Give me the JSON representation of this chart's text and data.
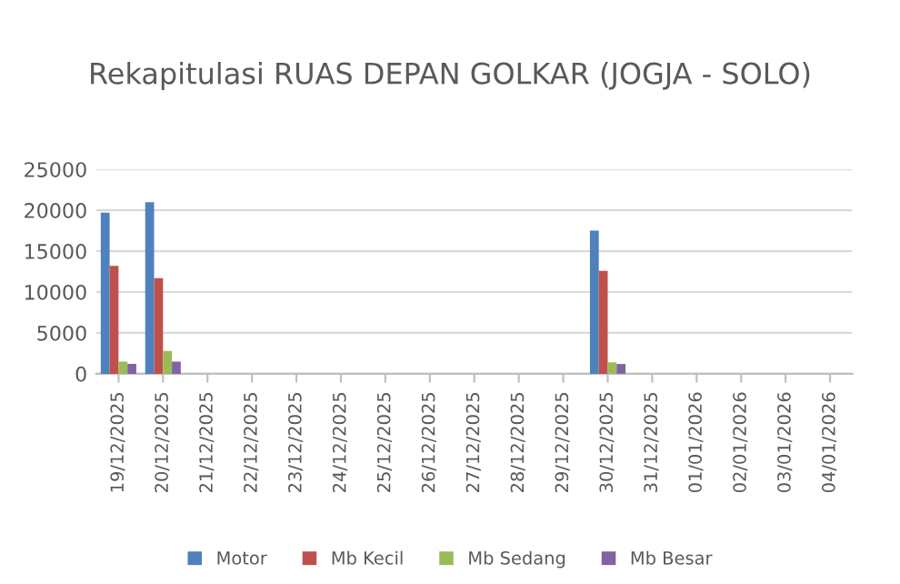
{
  "chart_data": {
    "type": "bar",
    "title": "Rekapitulasi RUAS DEPAN GOLKAR (JOGJA - SOLO)",
    "categories": [
      "19/12/2025",
      "20/12/2025",
      "21/12/2025",
      "22/12/2025",
      "23/12/2025",
      "24/12/2025",
      "25/12/2025",
      "26/12/2025",
      "27/12/2025",
      "28/12/2025",
      "29/12/2025",
      "30/12/2025",
      "31/12/2025",
      "01/01/2026",
      "02/01/2026",
      "03/01/2026",
      "04/01/2026"
    ],
    "series": [
      {
        "name": "Motor",
        "color": "#4f81bd",
        "values": [
          19700,
          21000,
          null,
          null,
          null,
          null,
          null,
          null,
          null,
          null,
          null,
          17500,
          null,
          null,
          null,
          null,
          null
        ]
      },
      {
        "name": "Mb Kecil",
        "color": "#c0504d",
        "values": [
          13200,
          11700,
          null,
          null,
          null,
          null,
          null,
          null,
          null,
          null,
          null,
          12600,
          null,
          null,
          null,
          null,
          null
        ]
      },
      {
        "name": "Mb Sedang",
        "color": "#9bbb59",
        "values": [
          1500,
          2800,
          null,
          null,
          null,
          null,
          null,
          null,
          null,
          null,
          null,
          1400,
          null,
          null,
          null,
          null,
          null
        ]
      },
      {
        "name": "Mb Besar",
        "color": "#8064a2",
        "values": [
          1200,
          1500,
          null,
          null,
          null,
          null,
          null,
          null,
          null,
          null,
          null,
          1200,
          null,
          null,
          null,
          null,
          null
        ]
      }
    ],
    "ylim": [
      0,
      25000
    ],
    "yticks": [
      0,
      5000,
      10000,
      15000,
      20000,
      25000
    ],
    "grid": "y",
    "legend": "bottom"
  }
}
